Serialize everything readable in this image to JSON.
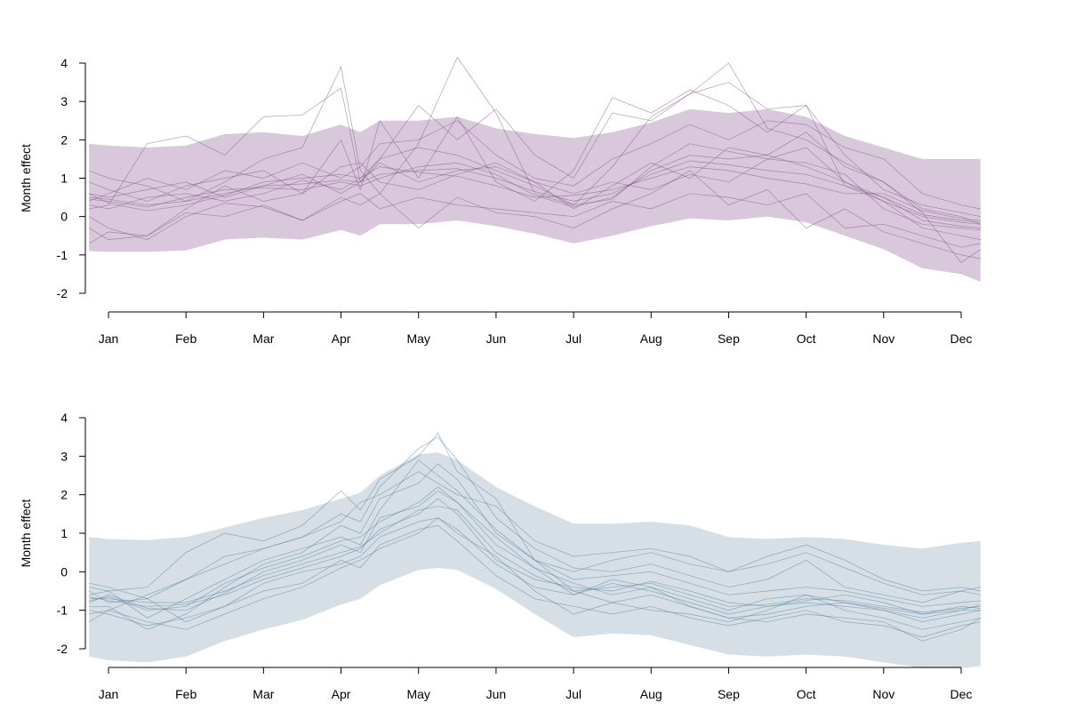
{
  "chart_data": [
    {
      "type": "line",
      "title": "",
      "xlabel": "",
      "ylabel": "Month effect",
      "categories": [
        "Jan",
        "Feb",
        "Mar",
        "Apr",
        "May",
        "Jun",
        "Jul",
        "Aug",
        "Sep",
        "Oct",
        "Nov",
        "Dec"
      ],
      "yticks": [
        "-2",
        "-1",
        "0",
        "1",
        "2",
        "3",
        "4"
      ],
      "ylim": [
        -2,
        4
      ],
      "xrange": [
        0.7,
        12.25
      ],
      "grid": false,
      "legend": "none",
      "colors": {
        "band": "#d9c8dc",
        "line": "#7a4a80"
      },
      "band": {
        "x": [
          0.75,
          1.0,
          1.5,
          2.0,
          2.5,
          3.0,
          3.5,
          4.0,
          4.25,
          4.5,
          5.0,
          5.5,
          6.0,
          6.5,
          7.0,
          7.5,
          8.0,
          8.5,
          9.0,
          9.5,
          10.0,
          10.5,
          11.0,
          11.5,
          12.0,
          12.25
        ],
        "upper": [
          1.9,
          1.85,
          1.8,
          1.85,
          2.15,
          2.2,
          2.1,
          2.4,
          2.2,
          2.5,
          2.5,
          2.6,
          2.3,
          2.15,
          2.05,
          2.2,
          2.45,
          2.8,
          2.7,
          2.8,
          2.6,
          2.1,
          1.8,
          1.5,
          1.5,
          1.5
        ],
        "lower": [
          -0.9,
          -0.92,
          -0.92,
          -0.88,
          -0.6,
          -0.55,
          -0.6,
          -0.35,
          -0.5,
          -0.2,
          -0.2,
          -0.1,
          -0.25,
          -0.45,
          -0.7,
          -0.5,
          -0.25,
          -0.05,
          -0.1,
          0.0,
          -0.15,
          -0.5,
          -0.85,
          -1.35,
          -1.5,
          -1.7
        ]
      },
      "x": [
        0.75,
        1.0,
        1.5,
        2.0,
        2.5,
        3.0,
        3.5,
        4.0,
        4.25,
        4.5,
        5.0,
        5.5,
        6.0,
        6.5,
        7.0,
        7.5,
        8.0,
        8.5,
        9.0,
        9.5,
        10.0,
        10.5,
        11.0,
        11.5,
        12.0,
        12.25
      ],
      "series": [
        {
          "values": [
            0.5,
            0.45,
            0.3,
            0.4,
            0.6,
            0.8,
            0.85,
            0.95,
            0.9,
            1.1,
            1.2,
            1.25,
            1.0,
            0.65,
            0.4,
            0.6,
            1.1,
            1.45,
            1.35,
            1.2,
            1.1,
            0.8,
            0.5,
            0.05,
            -0.1,
            -0.15
          ]
        },
        {
          "values": [
            0.45,
            0.4,
            0.25,
            0.5,
            0.7,
            0.75,
            0.7,
            0.9,
            0.8,
            1.0,
            1.3,
            1.4,
            1.1,
            0.55,
            0.25,
            0.5,
            1.2,
            1.6,
            1.5,
            1.6,
            1.3,
            0.9,
            0.4,
            0.0,
            -0.15,
            -0.2
          ]
        },
        {
          "values": [
            0.6,
            0.35,
            0.15,
            0.3,
            0.55,
            0.9,
            1.0,
            1.1,
            1.0,
            1.3,
            1.15,
            1.05,
            0.8,
            0.5,
            0.55,
            0.7,
            1.0,
            1.3,
            1.2,
            1.0,
            0.85,
            0.6,
            0.6,
            0.15,
            -0.05,
            -0.1
          ]
        },
        {
          "values": [
            0.3,
            0.2,
            0.5,
            0.6,
            0.4,
            0.6,
            0.95,
            0.7,
            1.0,
            1.5,
            1.8,
            1.6,
            1.2,
            0.8,
            0.3,
            0.45,
            1.3,
            1.9,
            1.7,
            1.5,
            1.4,
            1.1,
            0.2,
            -0.2,
            -0.3,
            -0.35
          ]
        },
        {
          "values": [
            0.9,
            0.7,
            0.4,
            0.8,
            1.0,
            1.2,
            0.6,
            1.3,
            1.4,
            0.9,
            0.7,
            1.1,
            1.4,
            0.9,
            0.6,
            0.9,
            0.7,
            1.1,
            0.9,
            1.5,
            1.8,
            0.9,
            0.5,
            -0.1,
            -0.25,
            -0.3
          ]
        },
        {
          "values": [
            -0.7,
            -0.4,
            -0.5,
            0.2,
            0.8,
            0.4,
            0.6,
            2.0,
            0.7,
            2.5,
            1.0,
            2.6,
            0.9,
            0.4,
            1.2,
            3.1,
            2.7,
            3.3,
            2.9,
            2.2,
            2.9,
            0.8,
            0.4,
            -0.3,
            -0.5,
            -0.6
          ]
        },
        {
          "values": [
            1.2,
            1.0,
            0.8,
            0.4,
            0.9,
            1.5,
            1.8,
            3.9,
            1.2,
            0.6,
            1.9,
            4.15,
            2.7,
            0.6,
            0.3,
            1.3,
            2.6,
            3.2,
            4.0,
            2.3,
            2.0,
            1.4,
            0.9,
            0.1,
            -1.2,
            -0.85
          ]
        },
        {
          "values": [
            0.0,
            -0.3,
            -0.6,
            0.0,
            0.35,
            0.25,
            -0.1,
            0.5,
            0.3,
            0.6,
            -0.3,
            0.5,
            0.1,
            0.0,
            -0.3,
            0.2,
            0.6,
            1.2,
            0.3,
            0.7,
            -0.3,
            0.2,
            -0.4,
            -0.7,
            -1.0,
            -1.1
          ]
        },
        {
          "values": [
            0.4,
            0.6,
            1.0,
            0.7,
            1.2,
            1.0,
            1.4,
            1.0,
            1.3,
            1.9,
            2.0,
            2.5,
            1.6,
            1.0,
            0.8,
            1.5,
            1.9,
            2.4,
            2.0,
            2.5,
            2.4,
            1.8,
            1.5,
            0.6,
            0.3,
            0.2
          ]
        },
        {
          "values": [
            0.2,
            0.3,
            1.9,
            2.1,
            1.6,
            2.6,
            2.65,
            3.35,
            0.9,
            1.5,
            2.9,
            2.0,
            2.8,
            1.6,
            1.0,
            2.7,
            2.5,
            3.2,
            3.5,
            2.8,
            2.9,
            1.6,
            0.7,
            0.3,
            0.1,
            0.0
          ]
        },
        {
          "values": [
            -0.3,
            -0.6,
            -0.5,
            0.1,
            0.0,
            0.3,
            -0.1,
            0.4,
            0.6,
            0.2,
            0.5,
            0.3,
            0.2,
            0.1,
            0.0,
            0.4,
            0.2,
            0.6,
            0.5,
            0.3,
            0.6,
            -0.3,
            -0.2,
            -0.5,
            -0.8,
            -0.7
          ]
        },
        {
          "values": [
            0.6,
            0.5,
            0.7,
            0.9,
            0.5,
            0.8,
            1.1,
            0.6,
            0.9,
            1.4,
            0.9,
            1.2,
            1.3,
            0.9,
            0.2,
            0.8,
            1.4,
            1.0,
            1.8,
            1.6,
            2.2,
            1.3,
            0.9,
            0.2,
            0.0,
            -0.2
          ]
        }
      ]
    },
    {
      "type": "line",
      "title": "",
      "xlabel": "",
      "ylabel": "Month effect",
      "categories": [
        "Jan",
        "Feb",
        "Mar",
        "Apr",
        "May",
        "Jun",
        "Jul",
        "Aug",
        "Sep",
        "Oct",
        "Nov",
        "Dec"
      ],
      "yticks": [
        "-2",
        "-1",
        "0",
        "1",
        "2",
        "3",
        "4"
      ],
      "ylim": [
        -2,
        4
      ],
      "xrange": [
        0.7,
        12.25
      ],
      "grid": false,
      "legend": "none",
      "colors": {
        "band": "#d5dfe5",
        "line": "#4f7896"
      },
      "band": {
        "x": [
          0.75,
          1.0,
          1.5,
          2.0,
          2.5,
          3.0,
          3.5,
          4.0,
          4.25,
          4.5,
          5.0,
          5.25,
          5.5,
          6.0,
          6.5,
          7.0,
          7.5,
          8.0,
          8.5,
          9.0,
          9.5,
          10.0,
          10.5,
          11.0,
          11.5,
          12.0,
          12.25
        ],
        "upper": [
          0.9,
          0.85,
          0.82,
          0.9,
          1.15,
          1.4,
          1.6,
          1.9,
          2.05,
          2.5,
          3.05,
          3.1,
          2.9,
          2.2,
          1.7,
          1.25,
          1.25,
          1.3,
          1.2,
          0.9,
          0.85,
          0.9,
          0.85,
          0.7,
          0.6,
          0.75,
          0.8
        ],
        "lower": [
          -2.2,
          -2.3,
          -2.35,
          -2.2,
          -1.8,
          -1.5,
          -1.25,
          -0.85,
          -0.7,
          -0.35,
          0.05,
          0.1,
          0.05,
          -0.45,
          -1.1,
          -1.7,
          -1.6,
          -1.65,
          -1.9,
          -2.15,
          -2.2,
          -2.15,
          -2.2,
          -2.35,
          -2.5,
          -2.5,
          -2.45
        ]
      },
      "x": [
        0.75,
        1.0,
        1.5,
        2.0,
        2.5,
        3.0,
        3.5,
        4.0,
        4.25,
        4.5,
        5.0,
        5.25,
        5.5,
        6.0,
        6.5,
        7.0,
        7.5,
        8.0,
        8.5,
        9.0,
        9.5,
        10.0,
        10.5,
        11.0,
        11.5,
        12.0,
        12.25
      ],
      "series": [
        {
          "values": [
            -0.7,
            -0.7,
            -0.8,
            -0.8,
            -0.5,
            -0.1,
            0.2,
            0.5,
            0.65,
            1.0,
            1.6,
            1.7,
            1.6,
            0.5,
            -0.1,
            -0.5,
            -0.4,
            -0.3,
            -0.6,
            -0.9,
            -0.85,
            -0.7,
            -0.75,
            -0.9,
            -1.05,
            -0.95,
            -0.9
          ]
        },
        {
          "values": [
            -0.65,
            -0.75,
            -0.9,
            -0.85,
            -0.6,
            -0.2,
            0.1,
            0.4,
            0.6,
            1.1,
            1.5,
            1.9,
            1.5,
            0.3,
            -0.2,
            -0.4,
            -0.5,
            -0.25,
            -0.5,
            -0.8,
            -0.9,
            -0.75,
            -0.6,
            -0.8,
            -1.1,
            -1.0,
            -0.85
          ]
        },
        {
          "values": [
            -0.8,
            -0.6,
            -0.95,
            -1.0,
            -0.55,
            0.0,
            0.3,
            0.7,
            0.5,
            1.4,
            1.7,
            2.1,
            1.8,
            0.7,
            0.1,
            -0.3,
            -0.6,
            -0.4,
            -0.7,
            -1.0,
            -0.7,
            -0.6,
            -0.8,
            -0.95,
            -1.1,
            -0.9,
            -0.95
          ]
        },
        {
          "values": [
            -0.5,
            -0.8,
            -0.7,
            -1.3,
            -0.9,
            -0.3,
            0.0,
            0.2,
            0.4,
            0.9,
            1.3,
            1.4,
            1.1,
            0.2,
            -0.4,
            -0.6,
            -0.3,
            -0.5,
            -0.8,
            -1.1,
            -0.9,
            -0.8,
            -0.9,
            -1.0,
            -1.2,
            -1.0,
            -1.0
          ]
        },
        {
          "values": [
            -0.9,
            -0.9,
            -1.5,
            -1.1,
            -0.4,
            0.2,
            0.5,
            1.2,
            1.0,
            1.9,
            2.3,
            2.8,
            2.4,
            1.0,
            0.3,
            -0.2,
            -0.1,
            0.0,
            -0.3,
            -0.6,
            -0.5,
            -0.4,
            -0.5,
            -0.7,
            -0.9,
            -0.8,
            -0.75
          ]
        },
        {
          "values": [
            -1.3,
            -1.0,
            -0.6,
            -0.2,
            0.4,
            0.6,
            0.9,
            1.5,
            1.3,
            2.2,
            3.2,
            3.5,
            2.9,
            1.4,
            0.6,
            0.1,
            0.0,
            0.2,
            -0.1,
            -0.4,
            -0.2,
            0.3,
            -0.4,
            -0.6,
            -0.8,
            -0.5,
            -0.6
          ]
        },
        {
          "values": [
            -0.4,
            -0.5,
            -1.2,
            -0.7,
            -0.2,
            0.3,
            0.6,
            0.9,
            0.7,
            1.6,
            2.9,
            2.5,
            2.1,
            1.1,
            0.3,
            -0.5,
            -0.8,
            -1.0,
            -1.1,
            -1.3,
            -1.0,
            -0.6,
            -1.0,
            -1.2,
            -1.5,
            -1.3,
            -1.2
          ]
        },
        {
          "values": [
            -1.0,
            -1.1,
            -1.4,
            -1.2,
            -0.9,
            -0.5,
            -0.3,
            0.3,
            0.1,
            0.7,
            1.1,
            1.2,
            0.8,
            -0.1,
            -0.7,
            -0.9,
            -1.1,
            -0.9,
            -1.2,
            -1.4,
            -1.2,
            -1.0,
            -1.3,
            -1.4,
            -1.7,
            -1.4,
            -1.3
          ]
        },
        {
          "values": [
            -0.6,
            -0.5,
            -0.4,
            0.5,
            1.0,
            0.8,
            1.2,
            2.1,
            1.6,
            2.4,
            3.0,
            3.6,
            2.6,
            1.9,
            0.3,
            0.0,
            0.3,
            0.5,
            0.2,
            0.0,
            0.4,
            0.7,
            0.3,
            -0.2,
            -0.5,
            -0.4,
            -0.5
          ]
        },
        {
          "values": [
            -0.75,
            -0.65,
            -1.0,
            -0.9,
            -0.3,
            0.1,
            0.4,
            0.8,
            0.9,
            1.3,
            1.8,
            2.2,
            1.8,
            0.9,
            0.1,
            -0.6,
            -0.2,
            -0.4,
            -0.9,
            -1.2,
            -1.1,
            -0.9,
            -0.8,
            -1.0,
            -1.3,
            -1.1,
            -1.0
          ]
        },
        {
          "values": [
            -0.3,
            -0.4,
            -0.7,
            -0.2,
            0.2,
            0.6,
            0.9,
            1.3,
            1.8,
            2.0,
            2.6,
            2.3,
            2.0,
            1.7,
            0.8,
            0.4,
            0.5,
            0.6,
            0.4,
            0.0,
            0.2,
            0.5,
            0.1,
            -0.3,
            -0.6,
            -0.5,
            -0.4
          ]
        },
        {
          "values": [
            -1.1,
            -1.0,
            -1.3,
            -1.5,
            -1.1,
            -0.7,
            -0.4,
            0.1,
            0.3,
            0.6,
            1.0,
            1.4,
            1.0,
            0.4,
            -0.5,
            -1.1,
            -0.8,
            -0.6,
            -0.9,
            -1.2,
            -1.3,
            -1.1,
            -1.2,
            -1.3,
            -1.8,
            -1.5,
            -1.2
          ]
        }
      ]
    }
  ]
}
